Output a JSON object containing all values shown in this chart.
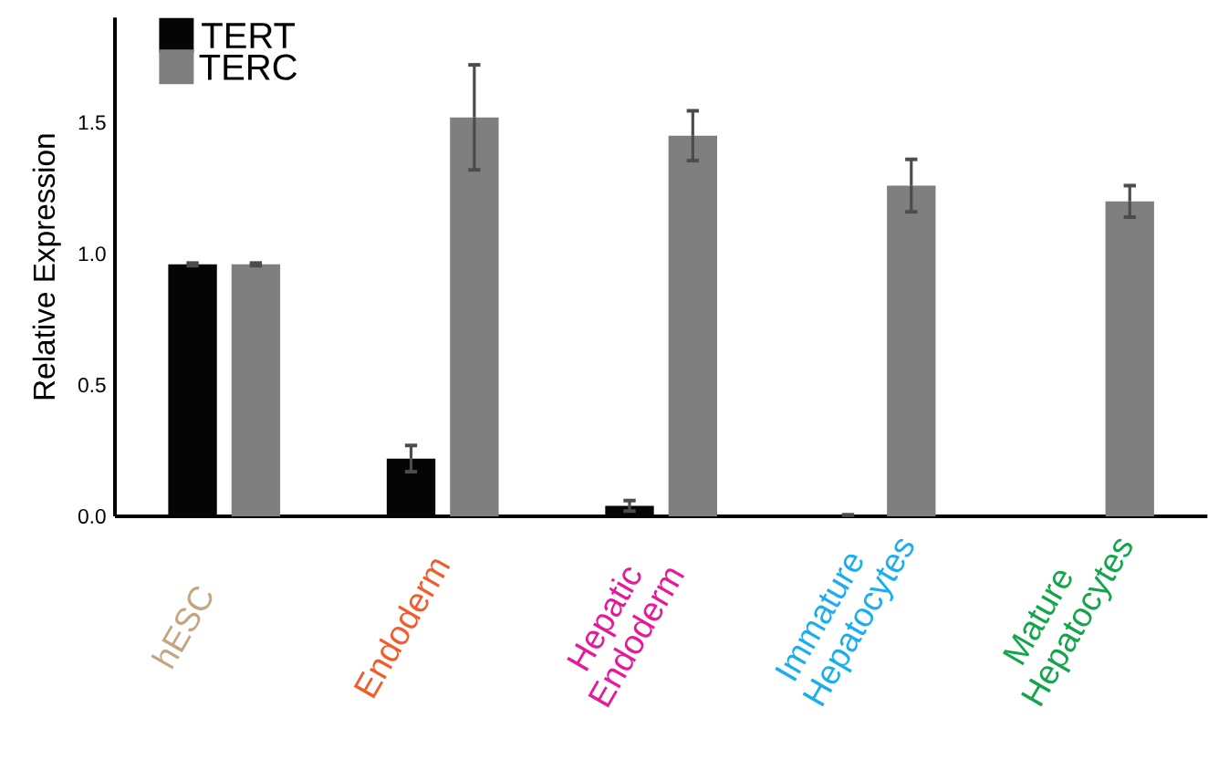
{
  "chart_data": {
    "type": "bar",
    "ylabel": "Relative Expression",
    "categories": [
      "hESC",
      "Endoderm",
      "Hepatic Endoderm",
      "Immature Hepatocytes",
      "Mature Hepatocytes"
    ],
    "series": [
      {
        "name": "TERT",
        "color": "#050505",
        "values": [
          0.96,
          0.22,
          0.04,
          0.005,
          null
        ],
        "errors": [
          0.005,
          0.05,
          0.02,
          null,
          null
        ]
      },
      {
        "name": "TERC",
        "color": "#7f7f7f",
        "values": [
          0.96,
          1.52,
          1.45,
          1.26,
          1.2
        ],
        "errors": [
          0.005,
          0.2,
          0.095,
          0.1,
          0.06
        ]
      }
    ],
    "ylim": [
      0,
      1.9
    ],
    "yticks": [
      {
        "value": 0,
        "label": "0.0"
      },
      {
        "value": 0.5,
        "label": "0.5"
      },
      {
        "value": 1,
        "label": "1.0"
      },
      {
        "value": 1.5,
        "label": "1.5"
      }
    ],
    "legend": "top left",
    "grid": false
  }
}
